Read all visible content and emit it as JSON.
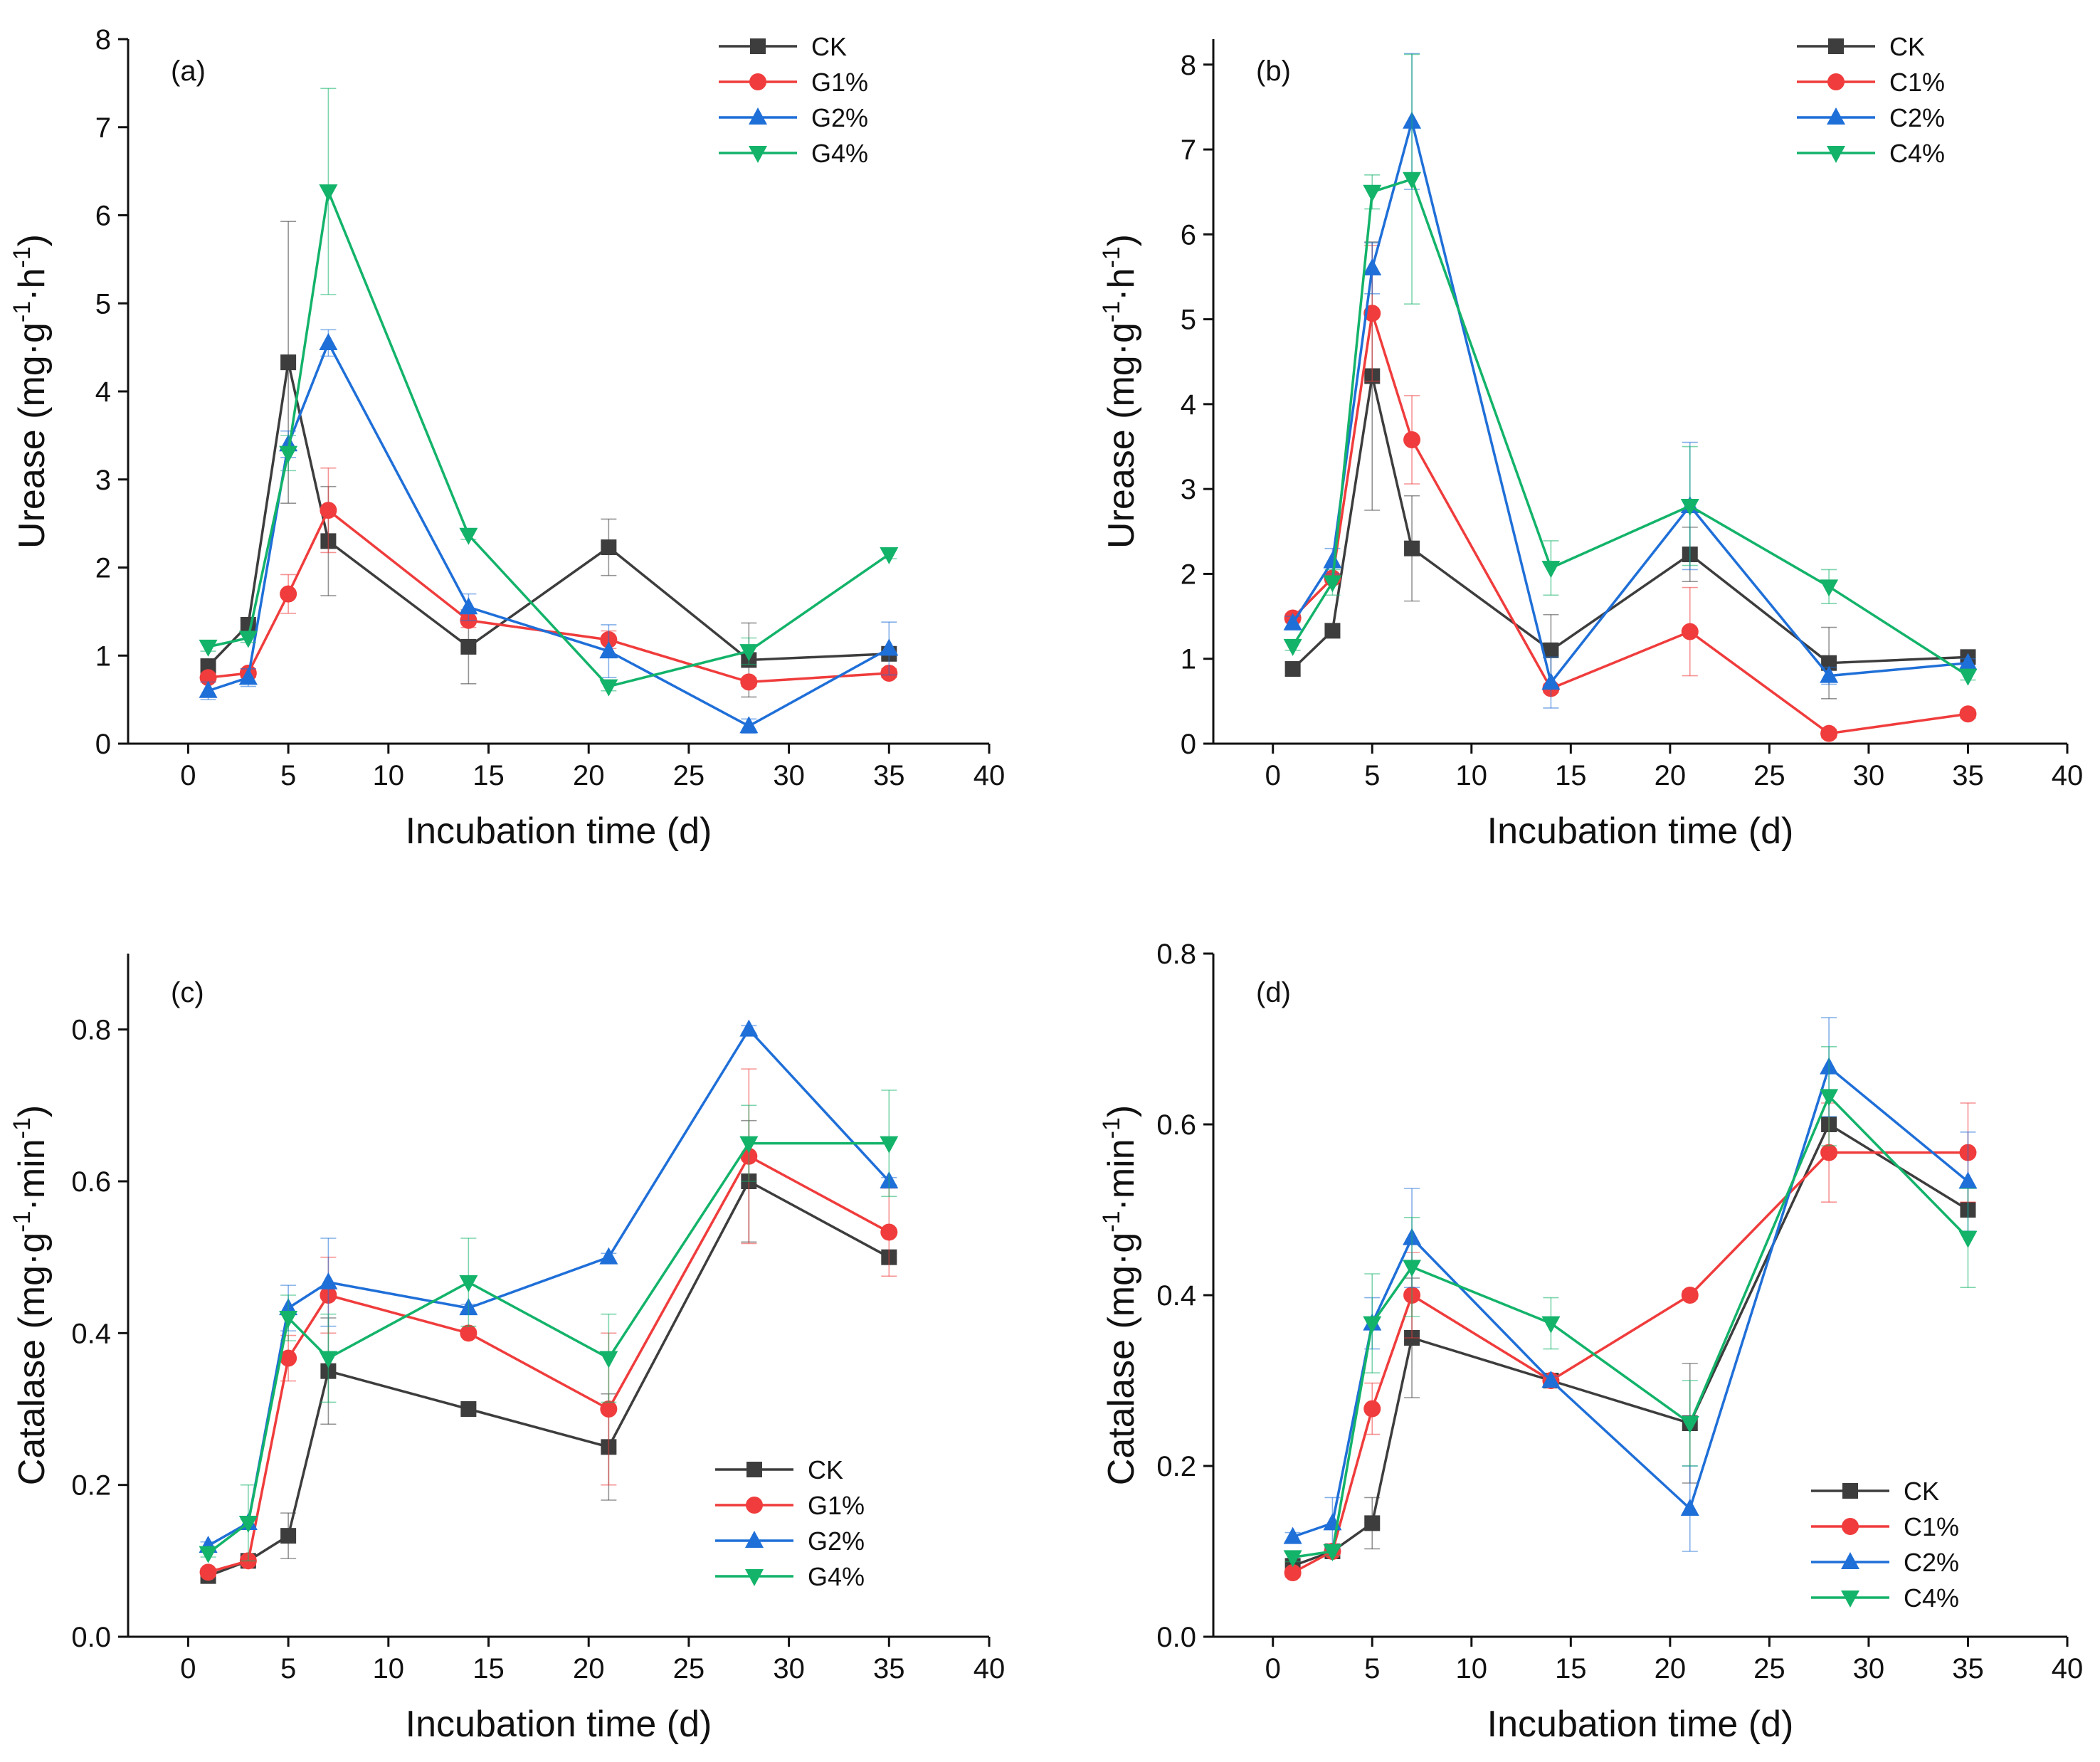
{
  "chart_data": [
    {
      "panel": "(a)",
      "type": "line",
      "xlabel": "Incubation time (d)",
      "ylabel": "Urease (mg·g-1·h-1)",
      "ylabel_parts": {
        "base": "Urease (mg·g",
        "sup1": "-1",
        "mid": "·h",
        "sup2": "-1",
        "end": ")"
      },
      "xlim": [
        -3,
        40
      ],
      "ylim": [
        0,
        8
      ],
      "xticks": [
        0,
        5,
        10,
        15,
        20,
        25,
        30,
        35,
        40
      ],
      "yticks": [
        0,
        1,
        2,
        3,
        4,
        5,
        6,
        7,
        8
      ],
      "ytick_labels": [
        "0",
        "1",
        "2",
        "3",
        "4",
        "5",
        "6",
        "7",
        "8"
      ],
      "legend_position": "top-right",
      "x": [
        1,
        3,
        5,
        7,
        14,
        21,
        28,
        35
      ],
      "series": [
        {
          "name": "CK",
          "color": "#3d3d3d",
          "marker": "square",
          "values": [
            0.88,
            1.35,
            4.33,
            2.3,
            1.1,
            2.23,
            0.95,
            1.02
          ],
          "errors": [
            0.06,
            0.05,
            1.6,
            0.62,
            0.42,
            0.32,
            0.42,
            0.05
          ]
        },
        {
          "name": "G1%",
          "color": "#f03c3c",
          "marker": "circle",
          "values": [
            0.75,
            0.8,
            1.7,
            2.65,
            1.4,
            1.18,
            0.7,
            0.8
          ],
          "errors": [
            0.05,
            0.05,
            0.22,
            0.48,
            0.08,
            0.1,
            0.05,
            0.05
          ]
        },
        {
          "name": "G2%",
          "color": "#1f6fd8",
          "marker": "triangle-up",
          "values": [
            0.6,
            0.75,
            3.4,
            4.55,
            1.55,
            1.05,
            0.2,
            1.08
          ],
          "errors": [
            0.1,
            0.1,
            0.15,
            0.15,
            0.15,
            0.3,
            0.08,
            0.3
          ]
        },
        {
          "name": "G4%",
          "color": "#13b36a",
          "marker": "triangle-down",
          "values": [
            1.1,
            1.2,
            3.3,
            6.27,
            2.37,
            0.65,
            1.05,
            2.15
          ],
          "errors": [
            0.05,
            0.05,
            0.2,
            1.17,
            0.05,
            0.05,
            0.15,
            0.05
          ]
        }
      ]
    },
    {
      "panel": "(b)",
      "type": "line",
      "xlabel": "Incubation time (d)",
      "ylabel": "Urease (mg·g-1·h-1)",
      "ylabel_parts": {
        "base": "Urease (mg·g",
        "sup1": "-1",
        "mid": "·h",
        "sup2": "-1",
        "end": ")"
      },
      "xlim": [
        -3,
        40
      ],
      "ylim": [
        0,
        8.3
      ],
      "xticks": [
        0,
        5,
        10,
        15,
        20,
        25,
        30,
        35,
        40
      ],
      "yticks": [
        0,
        1,
        2,
        3,
        4,
        5,
        6,
        7,
        8
      ],
      "ytick_labels": [
        "0",
        "1",
        "2",
        "3",
        "4",
        "5",
        "6",
        "7",
        "8"
      ],
      "legend_position": "top-right",
      "x": [
        1,
        3,
        5,
        7,
        14,
        21,
        28,
        35
      ],
      "series": [
        {
          "name": "CK",
          "color": "#3d3d3d",
          "marker": "square",
          "values": [
            0.88,
            1.33,
            4.33,
            2.3,
            1.1,
            2.23,
            0.95,
            1.02
          ],
          "errors": [
            0.08,
            0.08,
            1.58,
            0.62,
            0.42,
            0.32,
            0.42,
            0.05
          ]
        },
        {
          "name": "C1%",
          "color": "#f03c3c",
          "marker": "circle",
          "values": [
            1.48,
            1.95,
            5.07,
            3.58,
            0.65,
            1.32,
            0.12,
            0.35
          ],
          "errors": [
            0.05,
            0.05,
            0.8,
            0.52,
            0.05,
            0.52,
            0.05,
            0.05
          ]
        },
        {
          "name": "C2%",
          "color": "#1f6fd8",
          "marker": "triangle-up",
          "values": [
            1.42,
            2.15,
            5.6,
            7.33,
            0.72,
            2.8,
            0.8,
            0.95
          ],
          "errors": [
            0.08,
            0.15,
            0.3,
            0.8,
            0.3,
            0.75,
            0.1,
            0.05
          ]
        },
        {
          "name": "C4%",
          "color": "#13b36a",
          "marker": "triangle-down",
          "values": [
            1.15,
            1.9,
            6.5,
            6.65,
            2.07,
            2.8,
            1.85,
            0.8
          ],
          "errors": [
            0.05,
            0.15,
            0.2,
            1.47,
            0.32,
            0.7,
            0.2,
            0.05
          ]
        }
      ]
    },
    {
      "panel": "(c)",
      "type": "line",
      "xlabel": "Incubation time (d)",
      "ylabel": "Catalase (mg·g-1·min-1)",
      "ylabel_parts": {
        "base": "Catalase (mg·g",
        "sup1": "-1",
        "mid": "·min",
        "sup2": "-1",
        "end": ")"
      },
      "xlim": [
        -3,
        40
      ],
      "ylim": [
        0,
        0.9
      ],
      "xticks": [
        0,
        5,
        10,
        15,
        20,
        25,
        30,
        35,
        40
      ],
      "yticks": [
        0,
        0.2,
        0.4,
        0.6,
        0.8
      ],
      "ytick_labels": [
        "0.0",
        "0.2",
        "0.4",
        "0.6",
        "0.8"
      ],
      "legend_position": "bottom-right",
      "x": [
        1,
        3,
        5,
        7,
        14,
        21,
        28,
        35
      ],
      "series": [
        {
          "name": "CK",
          "color": "#3d3d3d",
          "marker": "square",
          "values": [
            0.08,
            0.1,
            0.133,
            0.35,
            0.3,
            0.25,
            0.6,
            0.5
          ],
          "errors": [
            0.005,
            0.005,
            0.03,
            0.07,
            0.005,
            0.07,
            0.08,
            0.005
          ]
        },
        {
          "name": "G1%",
          "color": "#f03c3c",
          "marker": "circle",
          "values": [
            0.085,
            0.1,
            0.367,
            0.45,
            0.4,
            0.3,
            0.633,
            0.533
          ],
          "errors": [
            0.005,
            0.005,
            0.03,
            0.05,
            0.005,
            0.1,
            0.115,
            0.058
          ]
        },
        {
          "name": "G2%",
          "color": "#1f6fd8",
          "marker": "triangle-up",
          "values": [
            0.12,
            0.15,
            0.433,
            0.467,
            0.433,
            0.5,
            0.8,
            0.6
          ],
          "errors": [
            0.005,
            0.005,
            0.03,
            0.058,
            0.005,
            0.005,
            0.005,
            0.005
          ]
        },
        {
          "name": "G4%",
          "color": "#13b36a",
          "marker": "triangle-down",
          "values": [
            0.11,
            0.15,
            0.42,
            0.367,
            0.467,
            0.367,
            0.65,
            0.65
          ],
          "errors": [
            0.005,
            0.05,
            0.03,
            0.058,
            0.058,
            0.058,
            0.05,
            0.07
          ]
        }
      ]
    },
    {
      "panel": "(d)",
      "type": "line",
      "xlabel": "Incubation time (d)",
      "ylabel": "Catalase (mg·g-1·min-1)",
      "ylabel_parts": {
        "base": "Catalase (mg·g",
        "sup1": "-1",
        "mid": "·min",
        "sup2": "-1",
        "end": ")"
      },
      "xlim": [
        -3,
        40
      ],
      "ylim": [
        0,
        0.8
      ],
      "xticks": [
        0,
        5,
        10,
        15,
        20,
        25,
        30,
        35,
        40
      ],
      "yticks": [
        0,
        0.2,
        0.4,
        0.6,
        0.8
      ],
      "ytick_labels": [
        "0.0",
        "0.2",
        "0.4",
        "0.6",
        "0.8"
      ],
      "legend_position": "bottom-right",
      "x": [
        1,
        3,
        5,
        7,
        14,
        21,
        28,
        35
      ],
      "series": [
        {
          "name": "CK",
          "color": "#3d3d3d",
          "marker": "square",
          "values": [
            0.083,
            0.1,
            0.133,
            0.35,
            0.3,
            0.25,
            0.6,
            0.5
          ],
          "errors": [
            0.005,
            0.005,
            0.03,
            0.07,
            0.005,
            0.07,
            0.005,
            0.005
          ]
        },
        {
          "name": "C1%",
          "color": "#f03c3c",
          "marker": "circle",
          "values": [
            0.075,
            0.1,
            0.267,
            0.4,
            0.3,
            0.4,
            0.567,
            0.567
          ],
          "errors": [
            0.005,
            0.005,
            0.03,
            0.05,
            0.005,
            0.005,
            0.058,
            0.058
          ]
        },
        {
          "name": "C2%",
          "color": "#1f6fd8",
          "marker": "triangle-up",
          "values": [
            0.117,
            0.133,
            0.367,
            0.467,
            0.3,
            0.15,
            0.667,
            0.533
          ],
          "errors": [
            0.005,
            0.03,
            0.03,
            0.058,
            0.005,
            0.05,
            0.058,
            0.058
          ]
        },
        {
          "name": "C4%",
          "color": "#13b36a",
          "marker": "triangle-down",
          "values": [
            0.093,
            0.1,
            0.367,
            0.433,
            0.367,
            0.25,
            0.633,
            0.467
          ],
          "errors": [
            0.005,
            0.005,
            0.058,
            0.058,
            0.03,
            0.05,
            0.058,
            0.058
          ]
        }
      ]
    }
  ]
}
